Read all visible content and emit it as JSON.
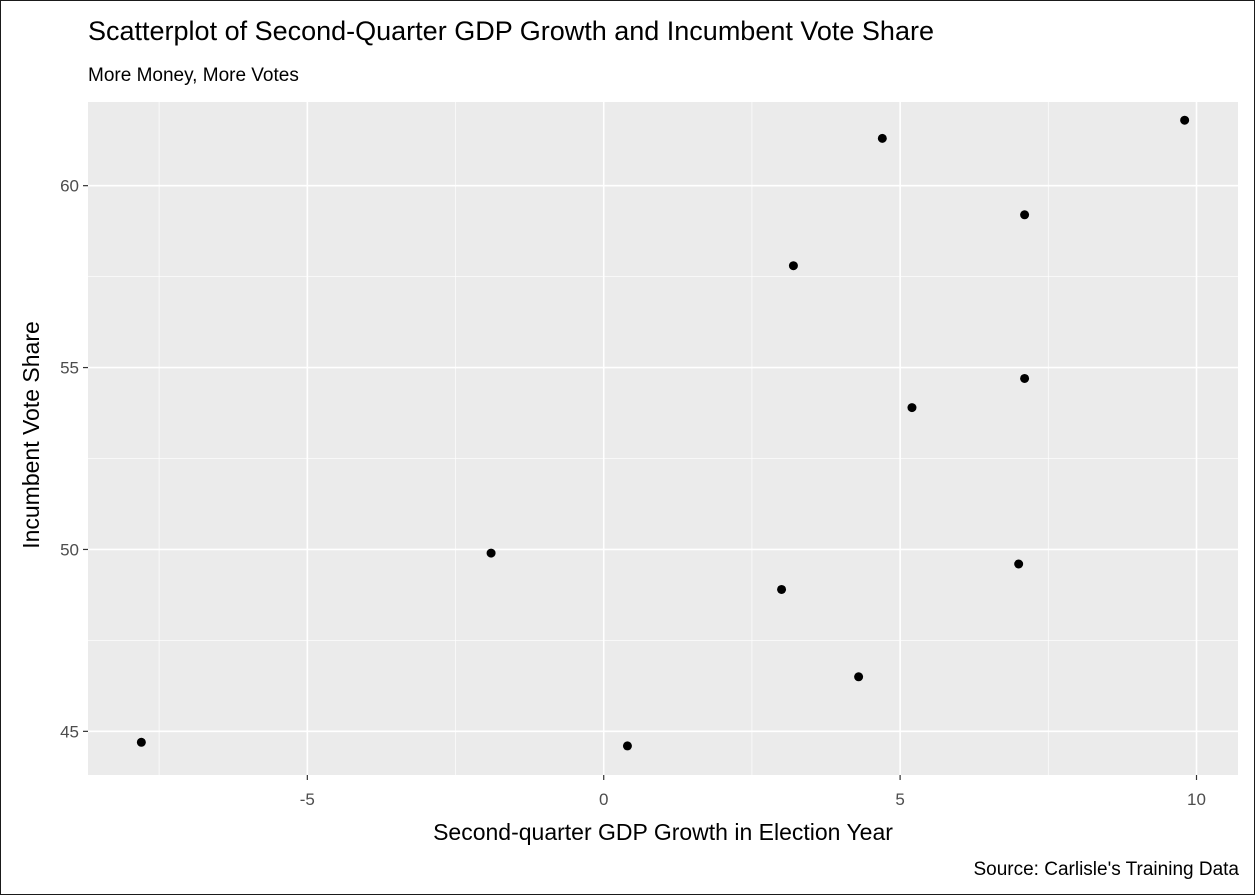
{
  "chart_data": {
    "type": "scatter",
    "title": "Scatterplot of Second-Quarter GDP Growth and Incumbent Vote Share",
    "subtitle": "More Money, More Votes",
    "xlabel": "Second-quarter GDP Growth in Election Year",
    "ylabel": "Incumbent Vote Share",
    "caption": "Source: Carlisle's Training Data",
    "xlim": [
      -8.7,
      10.7
    ],
    "ylim": [
      43.8,
      62.3
    ],
    "x_ticks": [
      -5,
      0,
      5,
      10
    ],
    "y_ticks": [
      45,
      50,
      55,
      60
    ],
    "x_tick_labels": [
      "-5",
      "0",
      "5",
      "10"
    ],
    "y_tick_labels": [
      "45",
      "50",
      "55",
      "60"
    ],
    "grid": true,
    "point_color": "#000000",
    "panel_color": "#ebebeb",
    "grid_color": "#ffffff",
    "points": [
      {
        "x": -7.8,
        "y": 44.7
      },
      {
        "x": -1.9,
        "y": 49.9
      },
      {
        "x": 0.4,
        "y": 44.6
      },
      {
        "x": 3.0,
        "y": 48.9
      },
      {
        "x": 3.2,
        "y": 57.8
      },
      {
        "x": 4.3,
        "y": 46.5
      },
      {
        "x": 4.7,
        "y": 61.3
      },
      {
        "x": 5.2,
        "y": 53.9
      },
      {
        "x": 7.0,
        "y": 49.6
      },
      {
        "x": 7.1,
        "y": 54.7
      },
      {
        "x": 7.1,
        "y": 59.2
      },
      {
        "x": 9.8,
        "y": 61.8
      }
    ]
  }
}
